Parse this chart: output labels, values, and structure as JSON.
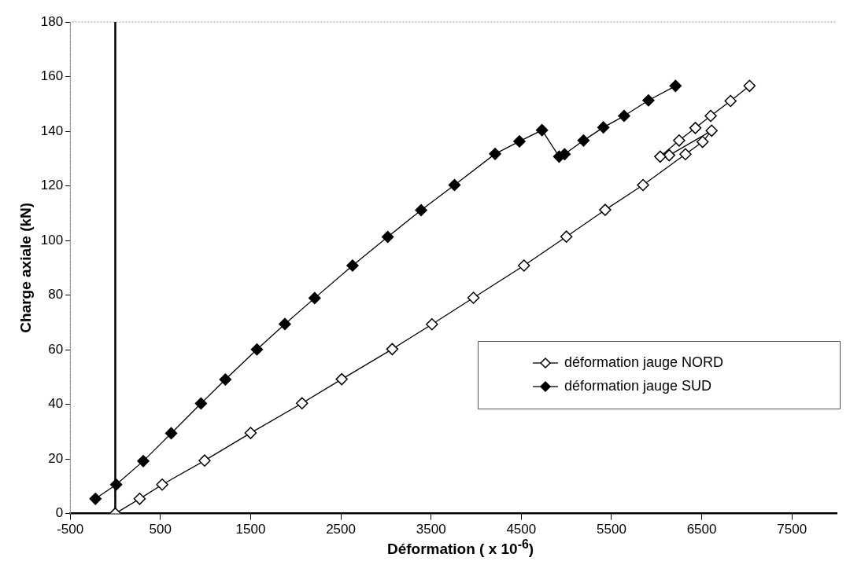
{
  "chart_data": {
    "type": "line",
    "xlabel": "Déformation ( x 10$^{-6}$)",
    "ylabel": "Charge axiale (kN)",
    "xlim": [
      -500,
      8000
    ],
    "xticks": [
      -500,
      500,
      1500,
      2500,
      3500,
      4500,
      5500,
      6500,
      7500
    ],
    "ylim": [
      0,
      180
    ],
    "yticks": [
      0,
      20,
      40,
      60,
      80,
      100,
      120,
      140,
      160,
      180
    ],
    "grid": false,
    "legend": "right",
    "ref_lines": [
      {
        "axis": "x",
        "value": 0,
        "label": null
      }
    ],
    "marker": "diamond",
    "line_style": "solid",
    "series": [
      {
        "name": "déformation jauge NORD",
        "color": "#000000",
        "x": [
          0,
          270,
          520,
          990,
          1500,
          2070,
          2510,
          3070,
          3510,
          3970,
          4530,
          5000,
          5430,
          5850,
          6320,
          6510,
          6610,
          6140,
          6040,
          6250,
          6430,
          6600,
          6820,
          7030
        ],
        "values": [
          0,
          5.4,
          10.6,
          19.4,
          29.5,
          40.4,
          49.2,
          60.2,
          69.3,
          79,
          90.8,
          101.4,
          111.2,
          120.3,
          131.6,
          136.1,
          140.2,
          131.2,
          130.7,
          136.6,
          141.2,
          145.6,
          151.1,
          156.6
        ]
      },
      {
        "name": "déformation jauge SUD",
        "color": "#000000",
        "x": [
          -220,
          10,
          310,
          620,
          950,
          1220,
          1570,
          1880,
          2210,
          2630,
          3020,
          3390,
          3760,
          4210,
          4480,
          4730,
          4920,
          4980,
          5190,
          5410,
          5640,
          5910,
          6210
        ],
        "values": [
          5.4,
          10.6,
          19.2,
          29.4,
          40.3,
          49.1,
          60.1,
          69.4,
          78.9,
          90.8,
          101.3,
          111.1,
          120.3,
          131.7,
          136.3,
          140.4,
          130.7,
          131.6,
          136.6,
          141.4,
          145.6,
          151.3,
          156.6
        ]
      }
    ]
  }
}
